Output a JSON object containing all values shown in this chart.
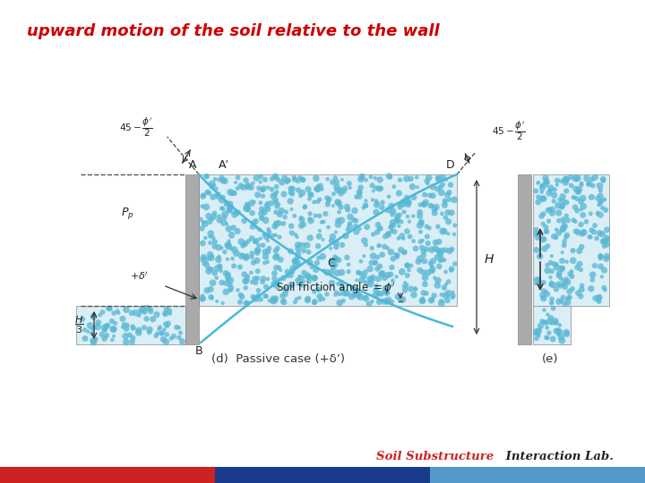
{
  "title": "upward motion of the soil relative to the wall",
  "title_color": "#cc0000",
  "title_fontsize": 13,
  "bg_color": "#ffffff",
  "soil_color": "#5bb8d4",
  "soil_bg": "#daeef5",
  "wall_color": "#aaaaaa",
  "curve_color": "#4ab8d8",
  "text_color": "#333333",
  "label_d_caption": "(d)  Passive case (+δ’)",
  "label_e_caption": "(e)",
  "bar_colors": [
    "#cc2222",
    "#1a3a8c",
    "#5599cc"
  ],
  "bottom_text_red": "Soil Substructure",
  "bottom_text_black": " Interaction Lab."
}
